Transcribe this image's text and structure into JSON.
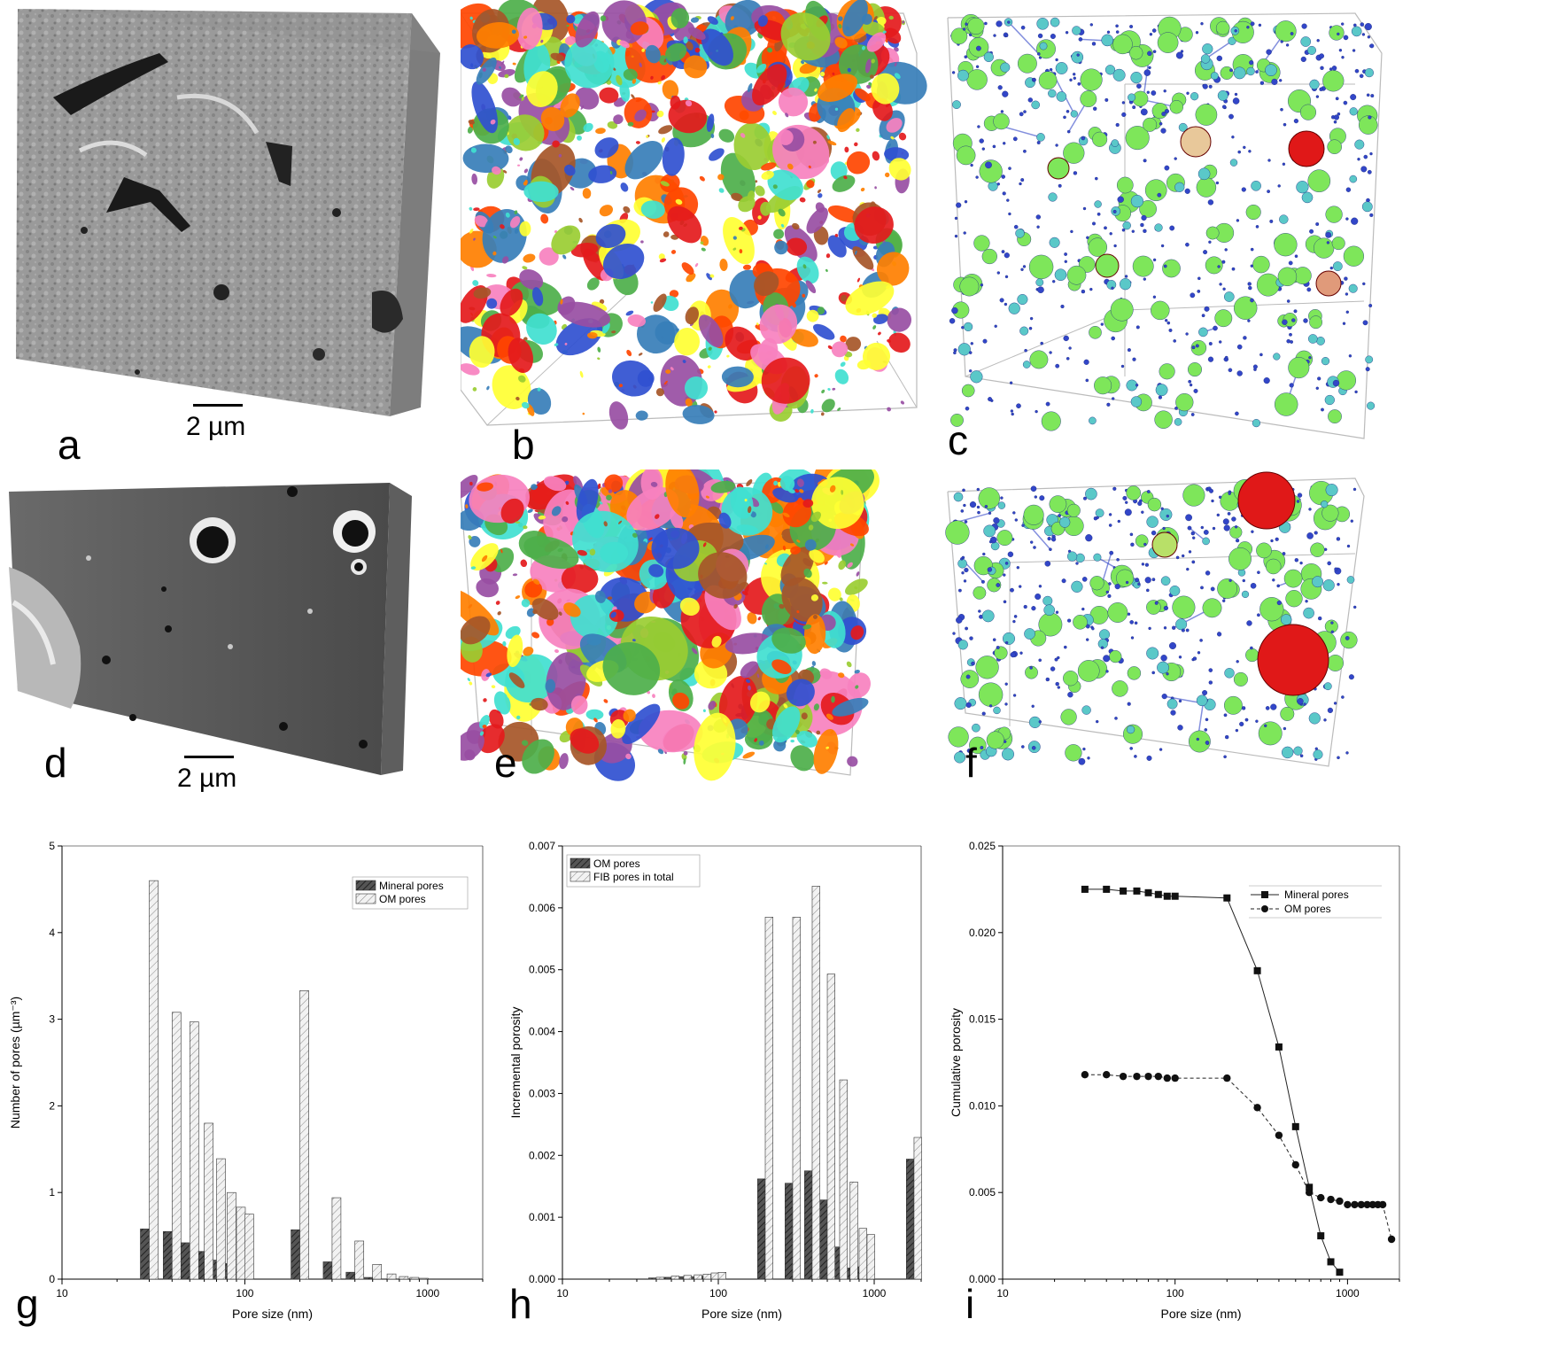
{
  "figure": {
    "panel_labels": [
      "a",
      "b",
      "c",
      "d",
      "e",
      "f",
      "g",
      "h",
      "i"
    ],
    "scalebar_a": "2 µm",
    "scalebar_d": "2 µm",
    "colors": {
      "pore_palette": [
        "#e41a1c",
        "#377eb8",
        "#4daf4a",
        "#984ea3",
        "#ff7f00",
        "#ffff33",
        "#a65628",
        "#f781bf",
        "#40e0d0",
        "#3050d0",
        "#9acd32",
        "#ff4500"
      ],
      "pnm_small": "#3246c8",
      "pnm_mid": "#5ac8c8",
      "pnm_large": "#7ee65a",
      "pnm_huge": "#e01818"
    }
  },
  "chart_data": [
    {
      "id": "g",
      "type": "bar",
      "xscale": "log",
      "xlim": [
        10,
        2000
      ],
      "ylim": [
        0,
        5
      ],
      "xticks": [
        "10",
        "100",
        "1000"
      ],
      "yticks": [
        "0",
        "1",
        "2",
        "3",
        "4",
        "5"
      ],
      "xlabel": "Pore size (nm)",
      "ylabel": "Number of pores (µm⁻³)",
      "legend": [
        "Mineral pores",
        "OM pores"
      ],
      "legend_position": "top-right",
      "series": [
        {
          "name": "Mineral pores",
          "x": [
            30,
            40,
            50,
            60,
            70,
            80,
            90,
            100,
            200,
            300,
            400,
            500
          ],
          "values": [
            0.58,
            0.55,
            0.42,
            0.32,
            0.22,
            0.18,
            0.12,
            0.12,
            0.57,
            0.2,
            0.08,
            0.02
          ]
        },
        {
          "name": "OM pores",
          "x": [
            30,
            40,
            50,
            60,
            70,
            80,
            90,
            100,
            200,
            300,
            400,
            500,
            600,
            700,
            800,
            900
          ],
          "values": [
            4.6,
            3.08,
            2.97,
            1.8,
            1.39,
            1.0,
            0.83,
            0.75,
            3.33,
            0.94,
            0.44,
            0.17,
            0.06,
            0.03,
            0.02,
            0.01
          ]
        }
      ]
    },
    {
      "id": "h",
      "type": "bar",
      "xscale": "log",
      "xlim": [
        10,
        2000
      ],
      "ylim": [
        0,
        0.007
      ],
      "xticks": [
        "10",
        "100",
        "1000"
      ],
      "yticks": [
        "0.000",
        "0.001",
        "0.002",
        "0.003",
        "0.004",
        "0.005",
        "0.006",
        "0.007"
      ],
      "xlabel": "Pore size (nm)",
      "ylabel": "Incremental porosity",
      "legend": [
        "OM pores",
        "FIB pores in total"
      ],
      "legend_position": "top-left",
      "series": [
        {
          "name": "OM pores",
          "x": [
            40,
            50,
            60,
            70,
            80,
            90,
            100,
            200,
            300,
            400,
            500,
            600,
            700,
            800,
            900,
            1800
          ],
          "values": [
            2e-05,
            3e-05,
            4e-05,
            4e-05,
            5e-05,
            6e-05,
            7e-05,
            0.00162,
            0.00155,
            0.00175,
            0.00128,
            0.00052,
            0.00018,
            0.0002,
            0.00023,
            0.00194
          ]
        },
        {
          "name": "FIB pores in total",
          "x": [
            40,
            50,
            60,
            70,
            80,
            90,
            100,
            200,
            300,
            400,
            500,
            600,
            700,
            800,
            900,
            1800
          ],
          "values": [
            3e-05,
            5e-05,
            6e-05,
            7e-05,
            8e-05,
            0.0001,
            0.00011,
            0.00585,
            0.00585,
            0.00635,
            0.00493,
            0.00322,
            0.00157,
            0.00082,
            0.00072,
            0.00229
          ]
        }
      ]
    },
    {
      "id": "i",
      "type": "line",
      "xscale": "log",
      "xlim": [
        10,
        2000
      ],
      "ylim": [
        0,
        0.025
      ],
      "xticks": [
        "10",
        "100",
        "1000"
      ],
      "yticks": [
        "0.000",
        "0.005",
        "0.010",
        "0.015",
        "0.020",
        "0.025"
      ],
      "xlabel": "Pore size (nm)",
      "ylabel": "Cumulative porosity",
      "legend": [
        "Mineral pores",
        "OM pores"
      ],
      "legend_position": "top-right",
      "series": [
        {
          "name": "Mineral pores",
          "marker": "square",
          "line": "solid",
          "x": [
            30,
            40,
            50,
            60,
            70,
            80,
            90,
            100,
            200,
            300,
            400,
            500,
            600,
            700,
            800,
            900
          ],
          "values": [
            0.0225,
            0.0225,
            0.0224,
            0.0224,
            0.0223,
            0.0222,
            0.0221,
            0.0221,
            0.022,
            0.0178,
            0.0134,
            0.0088,
            0.0053,
            0.0025,
            0.001,
            0.0004
          ]
        },
        {
          "name": "OM pores",
          "marker": "circle",
          "line": "dashed",
          "x": [
            30,
            40,
            50,
            60,
            70,
            80,
            90,
            100,
            200,
            300,
            400,
            500,
            600,
            700,
            800,
            900,
            1000,
            1100,
            1200,
            1300,
            1400,
            1500,
            1600,
            1800
          ],
          "values": [
            0.0118,
            0.0118,
            0.0117,
            0.0117,
            0.0117,
            0.0117,
            0.0116,
            0.0116,
            0.0116,
            0.0099,
            0.0083,
            0.0066,
            0.005,
            0.0047,
            0.0046,
            0.0045,
            0.0043,
            0.0043,
            0.0043,
            0.0043,
            0.0043,
            0.0043,
            0.0043,
            0.0023
          ]
        }
      ]
    }
  ]
}
